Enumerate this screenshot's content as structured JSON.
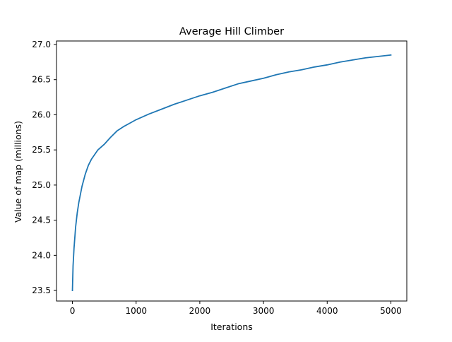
{
  "chart_data": {
    "type": "line",
    "title": "Average Hill Climber",
    "xlabel": "Iterations",
    "ylabel": "Value of map (millions)",
    "xlim": [
      -250,
      5250
    ],
    "ylim": [
      23.35,
      27.05
    ],
    "xticks": [
      0,
      1000,
      2000,
      3000,
      4000,
      5000
    ],
    "xtick_labels": [
      "0",
      "1000",
      "2000",
      "3000",
      "4000",
      "5000"
    ],
    "yticks": [
      23.5,
      24.0,
      24.5,
      25.0,
      25.5,
      26.0,
      26.5,
      27.0
    ],
    "ytick_labels": [
      "23.5",
      "24.0",
      "24.5",
      "25.0",
      "25.5",
      "26.0",
      "26.5",
      "27.0"
    ],
    "grid": false,
    "line_color": "#1f77b4",
    "series": [
      {
        "x": [
          0,
          10,
          25,
          50,
          75,
          100,
          150,
          200,
          250,
          300,
          400,
          500,
          600,
          700,
          800,
          900,
          1000,
          1200,
          1400,
          1600,
          1800,
          2000,
          2200,
          2400,
          2600,
          2800,
          3000,
          3200,
          3400,
          3600,
          3800,
          4000,
          4200,
          4400,
          4600,
          4800,
          5000
        ],
        "y": [
          23.5,
          23.85,
          24.1,
          24.4,
          24.6,
          24.75,
          24.98,
          25.15,
          25.28,
          25.37,
          25.5,
          25.58,
          25.68,
          25.77,
          25.83,
          25.88,
          25.93,
          26.01,
          26.08,
          26.15,
          26.21,
          26.27,
          26.32,
          26.38,
          26.44,
          26.48,
          26.52,
          26.57,
          26.61,
          26.64,
          26.68,
          26.71,
          26.75,
          26.78,
          26.81,
          26.83,
          26.85
        ]
      }
    ]
  }
}
